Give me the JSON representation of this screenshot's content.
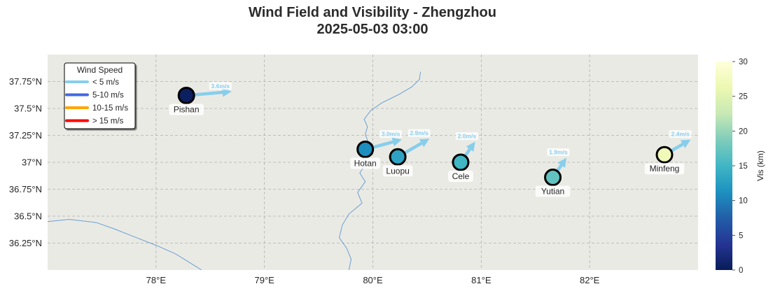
{
  "title": {
    "line1": "Wind Field and Visibility - Zhengzhou",
    "line2": "2025-05-03 03:00"
  },
  "map": {
    "lon_range": [
      77.0,
      83.0
    ],
    "lat_range": [
      36.0,
      38.0
    ],
    "x_ticks": [
      "78°E",
      "79°E",
      "80°E",
      "81°E",
      "82°E"
    ],
    "x_tick_values": [
      78,
      79,
      80,
      81,
      82
    ],
    "y_ticks": [
      "36.25°N",
      "36.5°N",
      "36.75°N",
      "37°N",
      "37.25°N",
      "37.5°N",
      "37.75°N"
    ],
    "y_tick_values": [
      36.25,
      36.5,
      36.75,
      37.0,
      37.25,
      37.5,
      37.75
    ],
    "grid": true,
    "background": "#eaeae5"
  },
  "legend": {
    "title": "Wind Speed",
    "placement": "top-left",
    "items": [
      {
        "label": "< 5 m/s",
        "color": "#87ceeb"
      },
      {
        "label": "5-10 m/s",
        "color": "#4169e1"
      },
      {
        "label": "10-15 m/s",
        "color": "#ffa500"
      },
      {
        "label": "> 15 m/s",
        "color": "#ff0000"
      }
    ]
  },
  "colorbar": {
    "label": "Vis (km)",
    "min": 0,
    "max": 30,
    "ticks": [
      "0",
      "5",
      "10",
      "15",
      "20",
      "25",
      "30"
    ],
    "tick_values": [
      0,
      5,
      10,
      15,
      20,
      25,
      30
    ],
    "colormap": "YlGnBu_r"
  },
  "stations": [
    {
      "name": "Pishan",
      "lon": 78.28,
      "lat": 37.62,
      "vis_km": 0.5,
      "wind_speed": 3.6,
      "wind_label": "3.6m/s",
      "wind_dir_deg": 265
    },
    {
      "name": "Hotan",
      "lon": 79.93,
      "lat": 37.12,
      "vis_km": 11,
      "wind_speed": 3.0,
      "wind_label": "3.0m/s",
      "wind_dir_deg": 255
    },
    {
      "name": "Luopu",
      "lon": 80.23,
      "lat": 37.05,
      "vis_km": 13,
      "wind_speed": 2.9,
      "wind_label": "2.9m/s",
      "wind_dir_deg": 240
    },
    {
      "name": "Cele",
      "lon": 80.81,
      "lat": 37.0,
      "vis_km": 15,
      "wind_speed": 2.0,
      "wind_label": "2.0m/s",
      "wind_dir_deg": 215
    },
    {
      "name": "Yutian",
      "lon": 81.66,
      "lat": 36.86,
      "vis_km": 17,
      "wind_speed": 1.9,
      "wind_label": "1.9m/s",
      "wind_dir_deg": 215
    },
    {
      "name": "Minfeng",
      "lon": 82.69,
      "lat": 37.07,
      "vis_km": 27,
      "wind_speed": 2.4,
      "wind_label": "2.4m/s",
      "wind_dir_deg": 240
    }
  ],
  "rivers": [
    {
      "name": "",
      "color": "#6a9fd0",
      "points": [
        [
          80.44,
          37.84
        ],
        [
          80.43,
          37.77
        ],
        [
          80.36,
          37.7
        ],
        [
          80.24,
          37.63
        ],
        [
          80.08,
          37.55
        ],
        [
          79.98,
          37.48
        ],
        [
          79.92,
          37.4
        ],
        [
          79.95,
          37.33
        ],
        [
          79.93,
          37.26
        ],
        [
          79.96,
          37.18
        ],
        [
          79.9,
          37.08
        ],
        [
          79.93,
          36.98
        ],
        [
          79.88,
          36.9
        ],
        [
          79.93,
          36.82
        ],
        [
          79.86,
          36.72
        ],
        [
          79.9,
          36.62
        ],
        [
          79.78,
          36.52
        ],
        [
          79.72,
          36.42
        ],
        [
          79.69,
          36.3
        ],
        [
          79.76,
          36.2
        ],
        [
          79.8,
          36.1
        ],
        [
          79.78,
          36.0
        ]
      ]
    },
    {
      "name": "",
      "color": "#6a9fd0",
      "points": [
        [
          77.0,
          36.45
        ],
        [
          77.2,
          36.47
        ],
        [
          77.45,
          36.44
        ],
        [
          77.62,
          36.38
        ],
        [
          77.82,
          36.3
        ],
        [
          78.0,
          36.23
        ],
        [
          78.18,
          36.15
        ],
        [
          78.34,
          36.05
        ],
        [
          78.42,
          36.0
        ]
      ]
    }
  ]
}
